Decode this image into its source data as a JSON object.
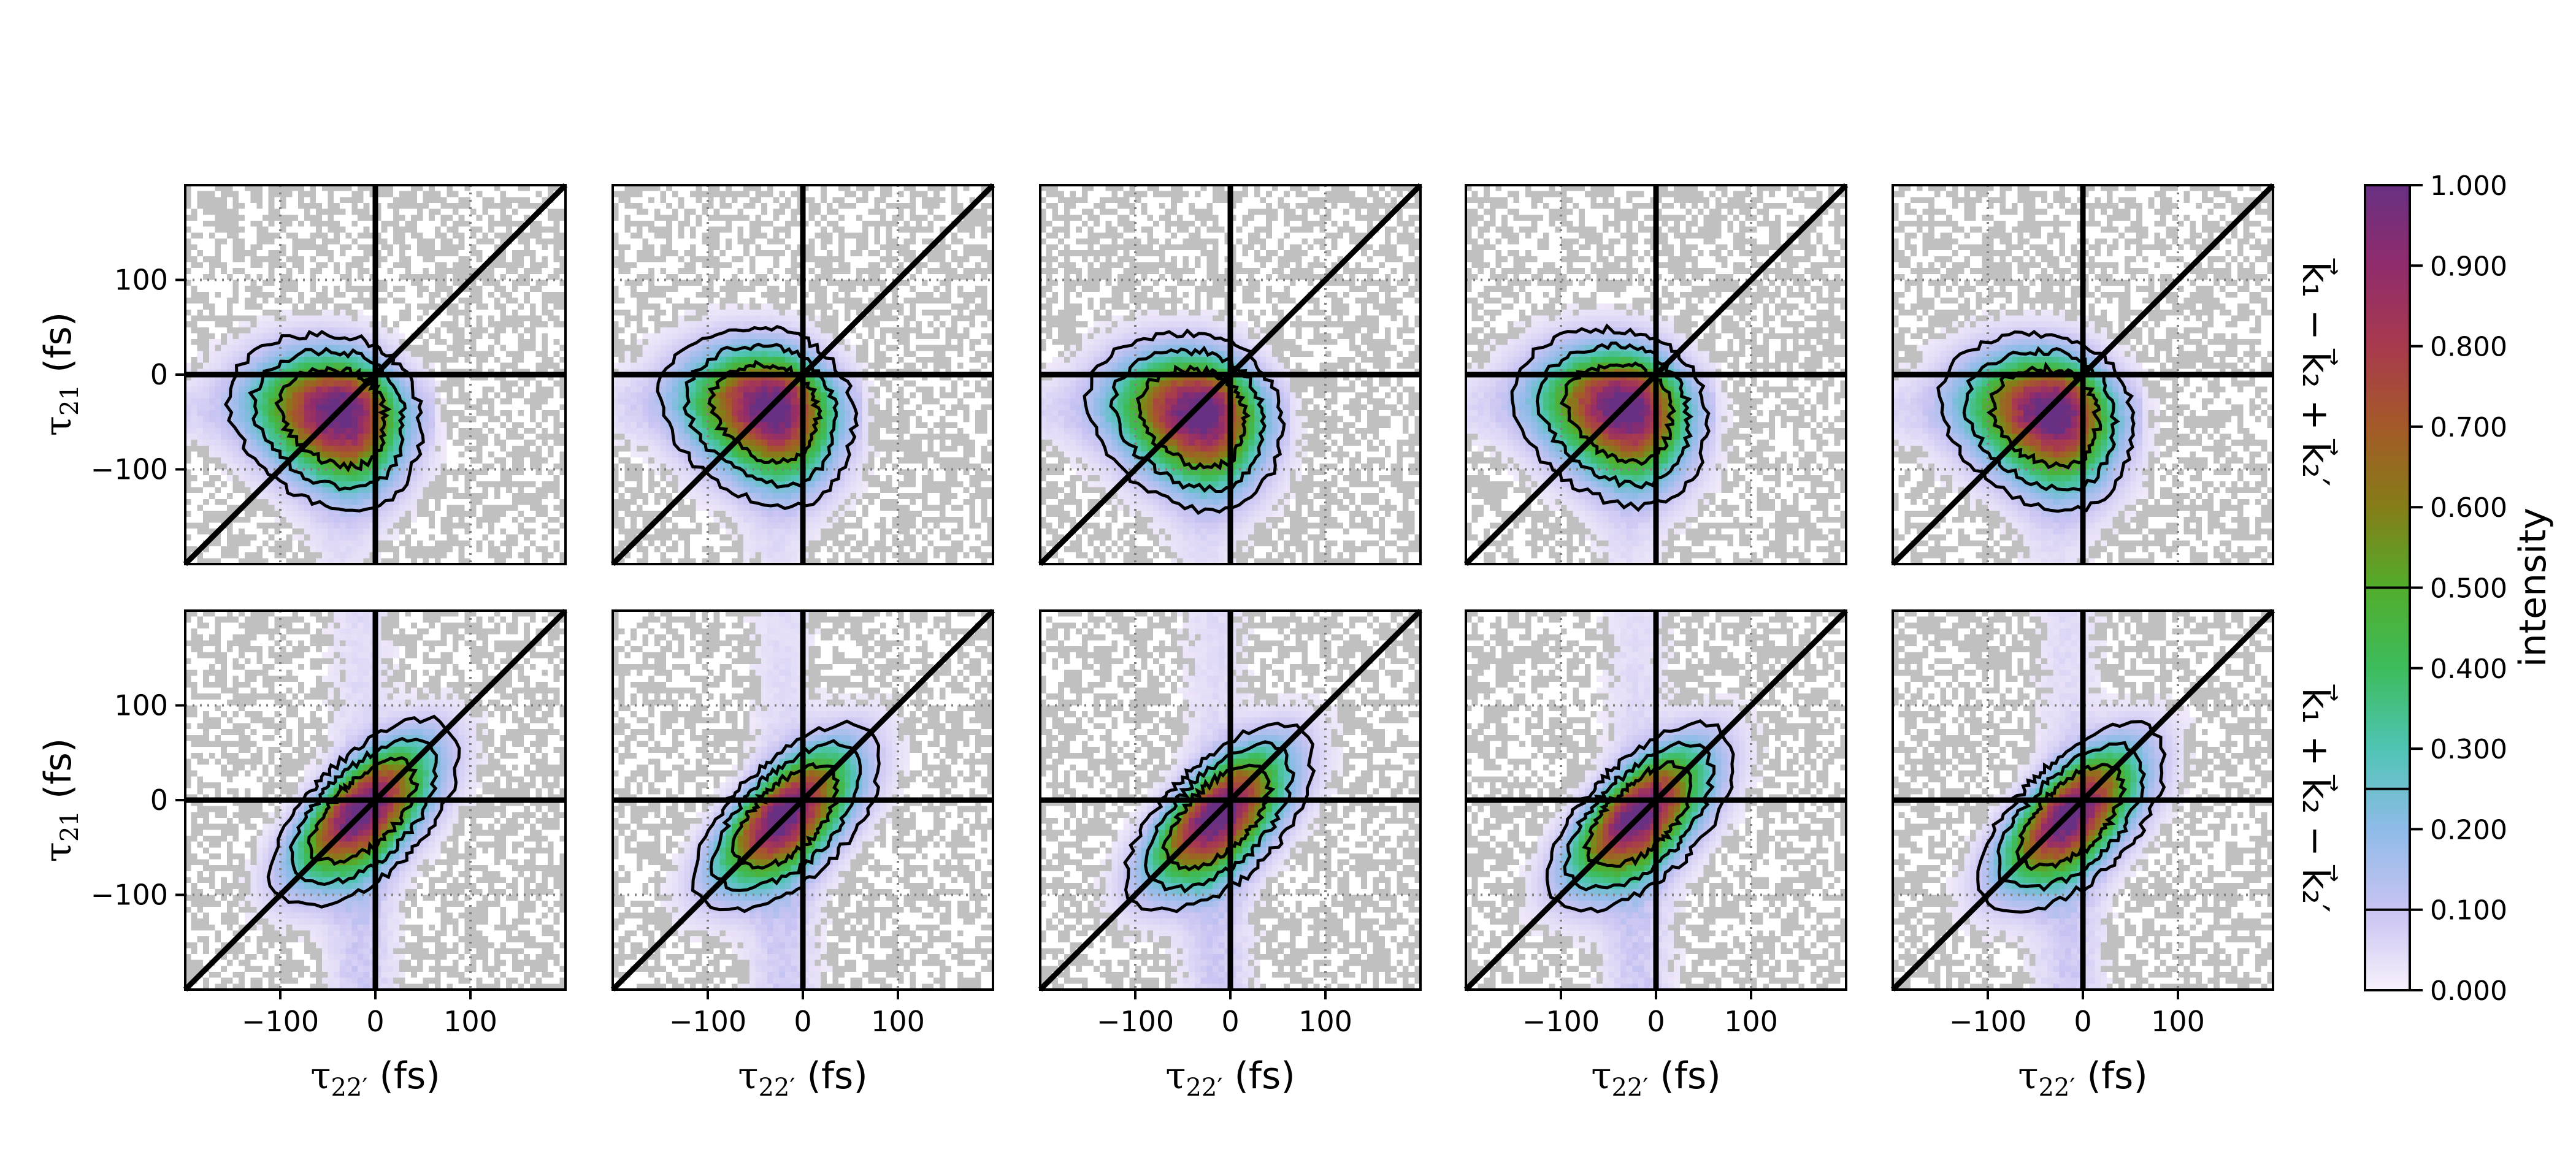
{
  "chart_data": {
    "type": "heatmap",
    "layout": "2 rows x 5 columns, shared axes",
    "xlabel": {
      "main": "τ",
      "sub": "22′",
      "unit": " (fs)"
    },
    "ylabel": {
      "main": "τ",
      "sub": "21",
      "unit": " (fs)"
    },
    "xlim": [
      -200,
      200
    ],
    "ylim": [
      -200,
      200
    ],
    "xticks": [
      -100,
      0,
      100
    ],
    "yticks": [
      -100,
      0,
      100
    ],
    "xtick_labels": [
      "−100",
      "0",
      "100"
    ],
    "ytick_labels": [
      "−100",
      "0",
      "100"
    ],
    "grid": "dotted at ±100",
    "reference_lines": [
      "x = 0",
      "y = 0",
      "y = x"
    ],
    "nan_color": "#c0c0c0",
    "row_labels": [
      "k⃗₁ − k⃗₂ + k⃗₂′",
      "k⃗₁ + k⃗₂ − k⃗₂′"
    ],
    "contour_levels": [
      0.1,
      0.25,
      0.5
    ],
    "rows": [
      {
        "panels": [
          {
            "peak": [
              -35,
              -40
            ]
          },
          {
            "peak": [
              -30,
              -35
            ]
          },
          {
            "peak": [
              -30,
              -40
            ]
          },
          {
            "peak": [
              -30,
              -35
            ]
          },
          {
            "peak": [
              -30,
              -40
            ]
          }
        ]
      },
      {
        "panels": [
          {
            "peak": [
              -15,
              -10
            ]
          },
          {
            "peak": [
              -20,
              -15
            ]
          },
          {
            "peak": [
              -15,
              -15
            ]
          },
          {
            "peak": [
              -20,
              -15
            ]
          },
          {
            "peak": [
              -15,
              -15
            ]
          }
        ]
      }
    ],
    "colorbar": {
      "label": "intensity",
      "range": [
        0,
        1
      ],
      "ticks": [
        "0.000",
        "0.100",
        "0.200",
        "0.300",
        "0.400",
        "0.500",
        "0.600",
        "0.700",
        "0.800",
        "0.900",
        "1.000"
      ],
      "colors": [
        "#f7f0fb",
        "#c8c3f2",
        "#8fbbe8",
        "#4fc4b4",
        "#3dbc5c",
        "#52ad2c",
        "#857d18",
        "#a45a28",
        "#a83a4e",
        "#902c6c",
        "#683082"
      ]
    }
  }
}
